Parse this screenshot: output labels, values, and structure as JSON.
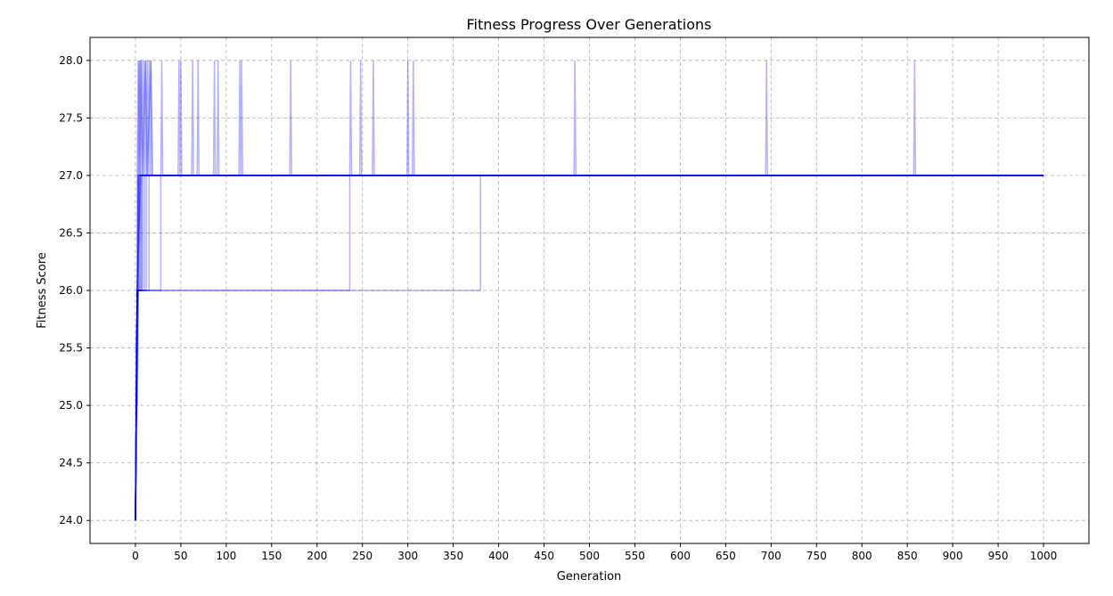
{
  "chart_data": {
    "type": "line",
    "title": "Fitness Progress Over Generations",
    "xlabel": "Generation",
    "ylabel": "Fitness Score",
    "xlim": [
      -50,
      1050
    ],
    "ylim": [
      23.8,
      28.2
    ],
    "xticks": [
      0,
      50,
      100,
      150,
      200,
      250,
      300,
      350,
      400,
      450,
      500,
      550,
      600,
      650,
      700,
      750,
      800,
      850,
      900,
      950,
      1000
    ],
    "yticks": [
      24.0,
      24.5,
      25.0,
      25.5,
      26.0,
      26.5,
      27.0,
      27.5,
      28.0
    ],
    "grid": true,
    "line_color": "#0000ff",
    "series": [
      {
        "points": [
          [
            0,
            24
          ],
          [
            1,
            25
          ],
          [
            1,
            25.5
          ],
          [
            2,
            26
          ],
          [
            3,
            26
          ],
          [
            3,
            27
          ],
          [
            1000,
            27
          ]
        ]
      },
      {
        "points": [
          [
            0,
            24
          ],
          [
            1,
            25
          ],
          [
            2,
            26
          ],
          [
            4,
            26
          ],
          [
            4,
            27
          ],
          [
            1000,
            27
          ]
        ]
      },
      {
        "points": [
          [
            0,
            24
          ],
          [
            1,
            25
          ],
          [
            2,
            25
          ],
          [
            3,
            26
          ],
          [
            5,
            26
          ],
          [
            5,
            27
          ],
          [
            1000,
            27
          ]
        ]
      },
      {
        "points": [
          [
            0,
            24
          ],
          [
            1,
            25.5
          ],
          [
            2,
            26
          ],
          [
            6,
            26
          ],
          [
            6,
            27
          ],
          [
            1000,
            27
          ]
        ]
      },
      {
        "points": [
          [
            0,
            24
          ],
          [
            2,
            25
          ],
          [
            3,
            26
          ],
          [
            7,
            26
          ],
          [
            7,
            27
          ],
          [
            1000,
            27
          ]
        ]
      },
      {
        "points": [
          [
            0,
            24
          ],
          [
            1,
            25
          ],
          [
            2,
            26
          ],
          [
            8,
            26
          ],
          [
            8,
            27
          ],
          [
            1000,
            27
          ]
        ]
      },
      {
        "points": [
          [
            0,
            24
          ],
          [
            1,
            25
          ],
          [
            3,
            26
          ],
          [
            10,
            26
          ],
          [
            10,
            27
          ],
          [
            1000,
            27
          ]
        ]
      },
      {
        "points": [
          [
            0,
            24
          ],
          [
            1,
            25
          ],
          [
            2,
            26
          ],
          [
            12,
            26
          ],
          [
            12,
            27
          ],
          [
            1000,
            27
          ]
        ]
      },
      {
        "points": [
          [
            0,
            24
          ],
          [
            1,
            25
          ],
          [
            2,
            26
          ],
          [
            15,
            26
          ],
          [
            15,
            27
          ],
          [
            1000,
            27
          ]
        ]
      },
      {
        "points": [
          [
            0,
            24
          ],
          [
            1,
            25
          ],
          [
            2,
            26
          ],
          [
            28,
            26
          ],
          [
            28,
            27
          ],
          [
            1000,
            27
          ]
        ]
      },
      {
        "points": [
          [
            0,
            24
          ],
          [
            1,
            25
          ],
          [
            2,
            26
          ],
          [
            236,
            26
          ],
          [
            236,
            27
          ],
          [
            1000,
            27
          ]
        ]
      },
      {
        "points": [
          [
            0,
            24
          ],
          [
            1,
            25
          ],
          [
            2,
            26
          ],
          [
            380,
            26
          ],
          [
            380,
            27
          ],
          [
            1000,
            27
          ]
        ]
      },
      {
        "points": [
          [
            0,
            24
          ],
          [
            1,
            25
          ],
          [
            2,
            26
          ],
          [
            2,
            27
          ],
          [
            3,
            28
          ],
          [
            4,
            27
          ],
          [
            5,
            28
          ],
          [
            6,
            27
          ],
          [
            7,
            28
          ],
          [
            8,
            27
          ],
          [
            9,
            28
          ],
          [
            10,
            27
          ],
          [
            11,
            28
          ],
          [
            12,
            27
          ],
          [
            13,
            28
          ],
          [
            14,
            27
          ],
          [
            15,
            28
          ],
          [
            16,
            27
          ],
          [
            17,
            28
          ],
          [
            18,
            27
          ],
          [
            1000,
            27
          ]
        ]
      },
      {
        "points": [
          [
            0,
            24
          ],
          [
            1,
            25
          ],
          [
            2,
            26
          ],
          [
            3,
            27
          ],
          [
            4,
            28
          ],
          [
            5,
            27
          ],
          [
            6,
            28
          ],
          [
            8,
            27
          ],
          [
            11,
            28
          ],
          [
            13,
            27
          ],
          [
            17,
            28
          ],
          [
            19,
            27
          ],
          [
            1000,
            27
          ]
        ]
      },
      {
        "points": [
          [
            0,
            24
          ],
          [
            1,
            25
          ],
          [
            3,
            26
          ],
          [
            4,
            27
          ],
          [
            28,
            27
          ],
          [
            29,
            28
          ],
          [
            30,
            27
          ],
          [
            47,
            27
          ],
          [
            48,
            28
          ],
          [
            49,
            27
          ],
          [
            50,
            28
          ],
          [
            51,
            27
          ],
          [
            62,
            27
          ],
          [
            63,
            28
          ],
          [
            64,
            27
          ],
          [
            68,
            27
          ],
          [
            69,
            28
          ],
          [
            70,
            27
          ],
          [
            1000,
            27
          ]
        ]
      },
      {
        "points": [
          [
            0,
            24
          ],
          [
            1,
            25
          ],
          [
            2,
            26
          ],
          [
            5,
            27
          ],
          [
            86,
            27
          ],
          [
            87,
            28
          ],
          [
            88,
            27
          ],
          [
            90,
            27
          ],
          [
            91,
            28
          ],
          [
            92,
            27
          ],
          [
            114,
            27
          ],
          [
            115,
            28
          ],
          [
            116,
            27
          ],
          [
            117,
            28
          ],
          [
            118,
            27
          ],
          [
            170,
            27
          ],
          [
            171,
            28
          ],
          [
            172,
            27
          ],
          [
            1000,
            27
          ]
        ]
      },
      {
        "points": [
          [
            0,
            24
          ],
          [
            1,
            25
          ],
          [
            2,
            26
          ],
          [
            6,
            27
          ],
          [
            236,
            27
          ],
          [
            237,
            28
          ],
          [
            238,
            27
          ],
          [
            247,
            27
          ],
          [
            248,
            28
          ],
          [
            249,
            27
          ],
          [
            261,
            27
          ],
          [
            262,
            28
          ],
          [
            263,
            27
          ],
          [
            299,
            27
          ],
          [
            300,
            28
          ],
          [
            301,
            27
          ],
          [
            305,
            27
          ],
          [
            306,
            28
          ],
          [
            307,
            27
          ],
          [
            1000,
            27
          ]
        ]
      },
      {
        "points": [
          [
            0,
            24
          ],
          [
            1,
            25
          ],
          [
            2,
            26
          ],
          [
            3,
            27
          ],
          [
            483,
            27
          ],
          [
            484,
            28
          ],
          [
            485,
            27
          ],
          [
            694,
            27
          ],
          [
            695,
            28
          ],
          [
            696,
            27
          ],
          [
            857,
            27
          ],
          [
            858,
            28
          ],
          [
            859,
            27
          ],
          [
            1000,
            27
          ]
        ]
      }
    ]
  }
}
